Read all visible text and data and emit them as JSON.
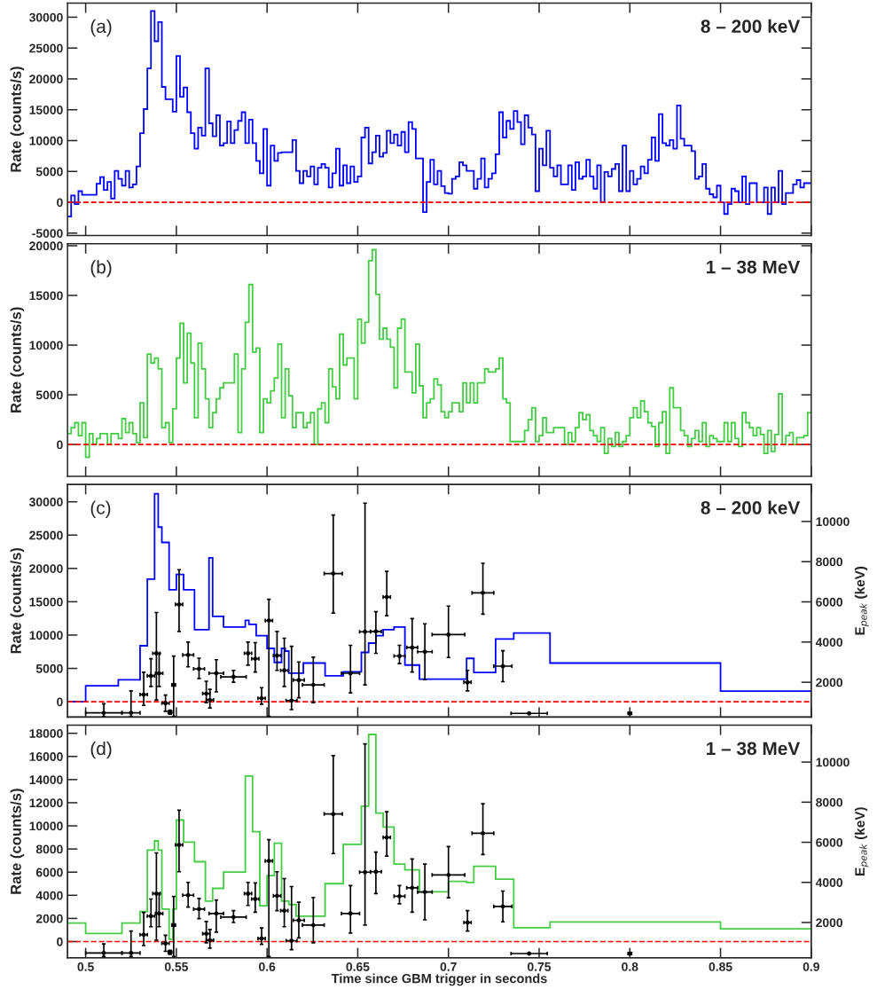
{
  "chart_data": [
    {
      "type": "histogram",
      "ylabel": "Rate (counts/s)",
      "annotations": [
        "(a)",
        "8 – 200 keV"
      ],
      "color": "#0000ff",
      "bins": [
        0.49,
        0.492,
        0.494,
        0.496,
        0.498,
        0.5,
        0.502,
        0.504,
        0.506,
        0.508,
        0.51,
        0.512,
        0.514,
        0.516,
        0.518,
        0.52,
        0.522,
        0.524,
        0.526,
        0.528,
        0.53,
        0.532,
        0.534,
        0.536,
        0.538,
        0.54,
        0.542,
        0.544,
        0.546,
        0.548,
        0.55,
        0.552,
        0.554,
        0.556,
        0.558,
        0.56,
        0.562,
        0.564,
        0.566,
        0.568,
        0.57,
        0.572,
        0.574,
        0.576,
        0.578,
        0.58,
        0.582,
        0.584,
        0.586,
        0.588,
        0.59,
        0.592,
        0.594,
        0.596,
        0.598,
        0.6,
        0.602,
        0.604,
        0.606,
        0.608,
        0.61,
        0.612,
        0.614,
        0.616,
        0.618,
        0.62,
        0.622,
        0.624,
        0.626,
        0.628,
        0.63,
        0.632,
        0.634,
        0.636,
        0.638,
        0.64,
        0.642,
        0.644,
        0.646,
        0.648,
        0.65,
        0.652,
        0.654,
        0.656,
        0.658,
        0.66,
        0.662,
        0.664,
        0.666,
        0.668,
        0.67,
        0.672,
        0.674,
        0.676,
        0.678,
        0.68,
        0.682,
        0.684,
        0.686,
        0.688,
        0.69,
        0.692,
        0.694,
        0.696,
        0.698,
        0.7,
        0.702,
        0.704,
        0.706,
        0.708,
        0.71,
        0.712,
        0.714,
        0.716,
        0.718,
        0.72,
        0.722,
        0.724,
        0.726,
        0.728,
        0.73,
        0.732,
        0.734,
        0.736,
        0.738,
        0.74,
        0.742,
        0.744,
        0.746,
        0.748,
        0.75,
        0.752,
        0.754,
        0.756,
        0.758,
        0.76,
        0.762,
        0.764,
        0.766,
        0.768,
        0.77,
        0.772,
        0.774,
        0.776,
        0.778,
        0.78,
        0.782,
        0.784,
        0.786,
        0.788,
        0.79,
        0.792,
        0.794,
        0.796,
        0.798,
        0.8,
        0.802,
        0.804,
        0.806,
        0.808,
        0.81,
        0.812,
        0.814,
        0.816,
        0.818,
        0.82,
        0.822,
        0.824,
        0.826,
        0.828,
        0.83,
        0.832,
        0.834,
        0.836,
        0.838,
        0.84,
        0.842,
        0.844,
        0.846,
        0.848,
        0.85,
        0.852,
        0.854,
        0.856,
        0.858,
        0.86,
        0.862,
        0.864,
        0.866,
        0.868,
        0.87,
        0.872,
        0.874,
        0.876,
        0.878,
        0.88,
        0.882,
        0.884,
        0.886,
        0.888,
        0.89,
        0.892,
        0.894,
        0.896,
        0.898,
        0.9
      ],
      "values": [
        -2300,
        1100,
        -300,
        1800,
        1200,
        1200,
        1200,
        1200,
        3000,
        4100,
        2000,
        3300,
        600,
        5100,
        3800,
        2700,
        5100,
        2400,
        2900,
        5800,
        11200,
        15100,
        21700,
        31000,
        26100,
        29200,
        18700,
        16700,
        16700,
        14700,
        23700,
        17100,
        18600,
        14600,
        11200,
        8700,
        12100,
        10800,
        21700,
        12800,
        10700,
        14100,
        9200,
        9600,
        13100,
        9600,
        11700,
        13200,
        14600,
        9600,
        13400,
        9600,
        6700,
        4700,
        11900,
        2700,
        9200,
        6700,
        8000,
        8100,
        8100,
        8100,
        10100,
        5100,
        3100,
        5100,
        4200,
        5800,
        2900,
        5600,
        6200,
        5600,
        2400,
        4700,
        8700,
        2700,
        6000,
        3100,
        5800,
        3300,
        4200,
        10500,
        12100,
        6300,
        8100,
        10800,
        7400,
        8000,
        11600,
        9600,
        11000,
        9200,
        11400,
        8100,
        13000,
        11900,
        7100,
        7100,
        -1600,
        3300,
        6900,
        2900,
        5100,
        2600,
        1500,
        1400,
        3800,
        4200,
        6500,
        6000,
        5100,
        5100,
        2200,
        3800,
        7100,
        2400,
        3800,
        4700,
        7800,
        14600,
        10500,
        13200,
        11900,
        14800,
        13000,
        9400,
        14100,
        12100,
        11000,
        1800,
        8700,
        6000,
        11600,
        5600,
        4200,
        6000,
        2900,
        2900,
        6000,
        2000,
        6500,
        3800,
        4200,
        6900,
        4200,
        2200,
        6000,
        0,
        4900,
        4200,
        5400,
        6200,
        1800,
        9200,
        1800,
        5100,
        2900,
        3800,
        5800,
        4700,
        6900,
        10500,
        6700,
        14300,
        9600,
        9200,
        10100,
        8700,
        15700,
        10300,
        9200,
        9200,
        8300,
        3800,
        4200,
        6200,
        2200,
        1300,
        800,
        2700,
        0,
        -1900,
        -300,
        2200,
        1800,
        0,
        4200,
        -300,
        3100,
        3100,
        0,
        0,
        2400,
        -1900,
        2400,
        0,
        5100,
        -300,
        1500,
        1500,
        2900,
        3600,
        2400,
        3100,
        3100
      ],
      "xlim": [
        0.49,
        0.9
      ],
      "xticks": [
        0.5,
        0.55,
        0.6,
        0.65,
        0.7,
        0.75,
        0.8,
        0.85,
        0.9
      ],
      "ylim": [
        -5400,
        32300
      ],
      "yticks": [
        -5000,
        0,
        5000,
        10000,
        15000,
        20000,
        25000,
        30000
      ],
      "tick_labels": "y",
      "ref_lines": [
        {
          "axis": "y",
          "value": 0,
          "color": "#ff0000",
          "line_style": "dashed"
        }
      ]
    },
    {
      "type": "histogram",
      "ylabel": "Rate (counts/s)",
      "annotations": [
        "(b)",
        "1 – 38 MeV"
      ],
      "color": "#44cc44",
      "bins": [
        0.49,
        0.492,
        0.494,
        0.496,
        0.498,
        0.5,
        0.502,
        0.504,
        0.506,
        0.508,
        0.51,
        0.512,
        0.514,
        0.516,
        0.518,
        0.52,
        0.522,
        0.524,
        0.526,
        0.528,
        0.53,
        0.532,
        0.534,
        0.536,
        0.538,
        0.54,
        0.542,
        0.544,
        0.546,
        0.548,
        0.55,
        0.552,
        0.554,
        0.556,
        0.558,
        0.56,
        0.562,
        0.564,
        0.566,
        0.568,
        0.57,
        0.572,
        0.574,
        0.576,
        0.578,
        0.58,
        0.582,
        0.584,
        0.586,
        0.588,
        0.59,
        0.592,
        0.594,
        0.596,
        0.598,
        0.6,
        0.602,
        0.604,
        0.606,
        0.608,
        0.61,
        0.612,
        0.614,
        0.616,
        0.618,
        0.62,
        0.622,
        0.624,
        0.626,
        0.628,
        0.63,
        0.632,
        0.634,
        0.636,
        0.638,
        0.64,
        0.642,
        0.644,
        0.646,
        0.648,
        0.65,
        0.652,
        0.654,
        0.656,
        0.658,
        0.66,
        0.662,
        0.664,
        0.666,
        0.668,
        0.67,
        0.672,
        0.674,
        0.676,
        0.678,
        0.68,
        0.682,
        0.684,
        0.686,
        0.688,
        0.69,
        0.692,
        0.694,
        0.696,
        0.698,
        0.7,
        0.702,
        0.704,
        0.706,
        0.708,
        0.71,
        0.712,
        0.714,
        0.716,
        0.718,
        0.72,
        0.722,
        0.724,
        0.726,
        0.728,
        0.73,
        0.732,
        0.734,
        0.736,
        0.738,
        0.74,
        0.742,
        0.744,
        0.746,
        0.748,
        0.75,
        0.752,
        0.754,
        0.756,
        0.758,
        0.76,
        0.762,
        0.764,
        0.766,
        0.768,
        0.77,
        0.772,
        0.774,
        0.776,
        0.778,
        0.78,
        0.782,
        0.784,
        0.786,
        0.788,
        0.79,
        0.792,
        0.794,
        0.796,
        0.798,
        0.8,
        0.802,
        0.804,
        0.806,
        0.808,
        0.81,
        0.812,
        0.814,
        0.816,
        0.818,
        0.82,
        0.822,
        0.824,
        0.826,
        0.828,
        0.83,
        0.832,
        0.834,
        0.836,
        0.838,
        0.84,
        0.842,
        0.844,
        0.846,
        0.848,
        0.85,
        0.852,
        0.854,
        0.856,
        0.858,
        0.86,
        0.862,
        0.864,
        0.866,
        0.868,
        0.87,
        0.872,
        0.874,
        0.876,
        0.878,
        0.88,
        0.882,
        0.884,
        0.886,
        0.888,
        0.89,
        0.892,
        0.894,
        0.896,
        0.898,
        0.9
      ],
      "values": [
        1100,
        1700,
        2200,
        900,
        2200,
        -1300,
        1100,
        0,
        600,
        1100,
        1100,
        0,
        1100,
        1100,
        600,
        2600,
        1200,
        2200,
        1100,
        200,
        4200,
        700,
        9100,
        8200,
        8700,
        7600,
        1700,
        2200,
        200,
        3600,
        8700,
        12200,
        6200,
        11200,
        8200,
        2700,
        10200,
        7600,
        4600,
        1700,
        3200,
        4600,
        5700,
        6200,
        6200,
        6200,
        9100,
        1200,
        7600,
        12300,
        16100,
        9300,
        9700,
        1200,
        4600,
        4200,
        5400,
        6700,
        10100,
        2700,
        7600,
        4900,
        1700,
        3200,
        3200,
        1700,
        2200,
        3200,
        0,
        3600,
        4200,
        2200,
        7600,
        5800,
        4600,
        11100,
        8000,
        8700,
        8700,
        4600,
        12600,
        10200,
        12300,
        18500,
        19600,
        15100,
        10600,
        11700,
        10600,
        9800,
        5700,
        11700,
        12600,
        7300,
        7300,
        5200,
        10100,
        5900,
        2700,
        4200,
        4600,
        6600,
        6000,
        3300,
        2700,
        3300,
        4200,
        4200,
        3300,
        6200,
        4200,
        6200,
        4200,
        6200,
        6200,
        7600,
        7300,
        7300,
        7600,
        8700,
        4600,
        4200,
        300,
        300,
        300,
        300,
        1400,
        2500,
        3700,
        300,
        900,
        2700,
        1200,
        1200,
        1700,
        1700,
        1700,
        0,
        1200,
        300,
        1700,
        3200,
        2500,
        3000,
        1400,
        900,
        300,
        1700,
        -900,
        600,
        -200,
        1200,
        -200,
        300,
        900,
        2700,
        3700,
        2700,
        4400,
        3300,
        2200,
        1800,
        -200,
        2200,
        3300,
        -900,
        5700,
        3700,
        3700,
        1400,
        900,
        -200,
        600,
        1400,
        300,
        2200,
        -200,
        900,
        600,
        300,
        300,
        2200,
        300,
        2200,
        600,
        -200,
        3200,
        2200,
        1700,
        900,
        1700,
        1000,
        -900,
        1400,
        -700,
        1000,
        5100,
        0,
        900,
        1200,
        0,
        700,
        700,
        900,
        3200
      ],
      "xlim": [
        0.49,
        0.9
      ],
      "xticks": [
        0.5,
        0.55,
        0.6,
        0.65,
        0.7,
        0.75,
        0.8,
        0.85,
        0.9
      ],
      "ylim": [
        -3200,
        20200
      ],
      "yticks": [
        0,
        5000,
        10000,
        15000,
        20000
      ],
      "tick_labels": "y",
      "ref_lines": [
        {
          "axis": "y",
          "value": 0,
          "color": "#ff0000",
          "line_style": "dashed"
        }
      ]
    },
    {
      "type": "histogram",
      "ylabel": "Rate (counts/s)",
      "y2label": "E$_{peak}$ (keV)",
      "annotations": [
        "(c)",
        "8 – 200 keV"
      ],
      "series": [
        {
          "type": "histogram",
          "color": "#0000ff",
          "bins": [
            0.49,
            0.5,
            0.518,
            0.53,
            0.534,
            0.538,
            0.54,
            0.542,
            0.546,
            0.55,
            0.554,
            0.56,
            0.568,
            0.57,
            0.576,
            0.588,
            0.59,
            0.594,
            0.6,
            0.604,
            0.608,
            0.61,
            0.612,
            0.62,
            0.632,
            0.642,
            0.652,
            0.656,
            0.66,
            0.664,
            0.67,
            0.676,
            0.684,
            0.71,
            0.714,
            0.726,
            0.736,
            0.756,
            0.85,
            0.9
          ],
          "values": [
            0,
            2400,
            3300,
            8400,
            18400,
            31200,
            26200,
            23900,
            16800,
            19100,
            16800,
            10800,
            21600,
            12800,
            11200,
            12200,
            11600,
            9900,
            8000,
            5900,
            8000,
            7600,
            4300,
            5800,
            3900,
            4500,
            7400,
            8800,
            9900,
            10800,
            11200,
            5500,
            3400,
            6500,
            4400,
            9400,
            10300,
            5800,
            1600
          ]
        },
        {
          "type": "scatter",
          "axis": "y2",
          "color": "#000000",
          "marker": "circle",
          "x": [
            0.51,
            0.525,
            0.532,
            0.536,
            0.539,
            0.5405,
            0.544,
            0.5465,
            0.5485,
            0.5515,
            0.5565,
            0.5625,
            0.5665,
            0.5685,
            0.572,
            0.5815,
            0.5895,
            0.5935,
            0.597,
            0.601,
            0.6055,
            0.6095,
            0.6135,
            0.6175,
            0.6255,
            0.6365,
            0.646,
            0.654,
            0.66,
            0.666,
            0.673,
            0.68,
            0.687,
            0.7,
            0.7105,
            0.719,
            0.73,
            0.7445,
            0.8
          ],
          "values": [
            480,
            480,
            1390,
            2320,
            3440,
            2450,
            960,
            510,
            1870,
            5870,
            3360,
            2670,
            1440,
            1120,
            2450,
            2270,
            3440,
            3170,
            1200,
            5070,
            3330,
            2590,
            1090,
            2110,
            1870,
            7410,
            2450,
            4510,
            4530,
            6240,
            3310,
            3730,
            3520,
            4370,
            2000,
            6450,
            2800,
            450,
            450
          ],
          "xerrors": [
            0.01,
            0.005,
            0.002,
            0.002,
            0.002,
            0.002,
            0.002,
            0.001,
            0.001,
            0.002,
            0.003,
            0.003,
            0.002,
            0.002,
            0.004,
            0.007,
            0.002,
            0.002,
            0.002,
            0.002,
            0.002,
            0.002,
            0.003,
            0.003,
            0.006,
            0.005,
            0.005,
            0.003,
            0.003,
            0.002,
            0.003,
            0.003,
            0.004,
            0.009,
            0.002,
            0.006,
            0.005,
            0.01,
            0.001
          ],
          "errors": [
            [
              300,
              930
            ],
            [
              300,
              1570
            ],
            [
              850,
              2500
            ],
            [
              1790,
              3170
            ],
            [
              1120,
              5470
            ],
            [
              1790,
              3440
            ],
            [
              560,
              1360
            ],
            [
              410,
              610
            ],
            [
              300,
              3300
            ],
            [
              4530,
              7600
            ],
            [
              2770,
              4000
            ],
            [
              2190,
              3200
            ],
            [
              990,
              2050
            ],
            [
              720,
              1650
            ],
            [
              1520,
              3120
            ],
            [
              2000,
              2590
            ],
            [
              2850,
              4000
            ],
            [
              2510,
              3970
            ],
            [
              910,
              1730
            ],
            [
              300,
              6130
            ],
            [
              2590,
              4530
            ],
            [
              1790,
              4190
            ],
            [
              640,
              3790
            ],
            [
              1230,
              3010
            ],
            [
              990,
              3250
            ],
            [
              5440,
              10320
            ],
            [
              1470,
              3840
            ],
            [
              1870,
              10910
            ],
            [
              3440,
              5510
            ],
            [
              5310,
              7520
            ],
            [
              2930,
              3840
            ],
            [
              2510,
              5170
            ],
            [
              2130,
              4910
            ],
            [
              3230,
              5790
            ],
            [
              1570,
              2590
            ],
            [
              5390,
              7920
            ],
            [
              2030,
              3570
            ],
            null,
            null
          ]
        }
      ],
      "xlim": [
        0.49,
        0.9
      ],
      "xticks": [
        0.5,
        0.55,
        0.6,
        0.65,
        0.7,
        0.75,
        0.8,
        0.85,
        0.9
      ],
      "ylim": [
        -2300,
        32600
      ],
      "yticks": [
        0,
        5000,
        10000,
        15000,
        20000,
        25000,
        30000
      ],
      "y2lim": [
        270,
        11840
      ],
      "y2ticks": [
        2000,
        4000,
        6000,
        8000,
        10000
      ],
      "tick_labels": "y",
      "ref_lines": [
        {
          "axis": "y",
          "value": 0,
          "color": "#ff0000",
          "line_style": "dashed"
        }
      ]
    },
    {
      "type": "histogram",
      "ylabel": "Rate (counts/s)",
      "y2label": "E$_{peak}$ (keV)",
      "xlabel": "Time since GBM trigger in seconds",
      "annotations": [
        "(d)",
        "1 – 38 MeV"
      ],
      "series": [
        {
          "type": "histogram",
          "color": "#44cc44",
          "bins": [
            0.49,
            0.5,
            0.52,
            0.53,
            0.534,
            0.538,
            0.54,
            0.542,
            0.546,
            0.548,
            0.55,
            0.554,
            0.56,
            0.566,
            0.57,
            0.576,
            0.588,
            0.592,
            0.596,
            0.6,
            0.604,
            0.608,
            0.612,
            0.616,
            0.632,
            0.642,
            0.652,
            0.656,
            0.66,
            0.664,
            0.67,
            0.676,
            0.684,
            0.7,
            0.71,
            0.714,
            0.726,
            0.736,
            0.756,
            0.85,
            0.9
          ],
          "values": [
            1600,
            700,
            1600,
            2600,
            7900,
            8700,
            7900,
            2800,
            200,
            2800,
            10500,
            8600,
            6900,
            3500,
            4600,
            6000,
            14300,
            9500,
            3100,
            5700,
            8500,
            3500,
            3200,
            2200,
            5000,
            8400,
            11700,
            17900,
            11100,
            9900,
            6700,
            6200,
            4300,
            5200,
            5100,
            6500,
            5400,
            1200,
            1700,
            1100
          ]
        },
        {
          "type": "scatter",
          "axis": "y2",
          "color": "#000000",
          "marker": "circle",
          "x": [
            0.51,
            0.525,
            0.532,
            0.536,
            0.539,
            0.5405,
            0.544,
            0.5465,
            0.5485,
            0.5515,
            0.5565,
            0.5625,
            0.5665,
            0.5685,
            0.572,
            0.5815,
            0.5895,
            0.5935,
            0.597,
            0.601,
            0.6055,
            0.6095,
            0.6135,
            0.6175,
            0.6255,
            0.6365,
            0.646,
            0.654,
            0.66,
            0.666,
            0.673,
            0.68,
            0.687,
            0.7,
            0.7105,
            0.719,
            0.73,
            0.7445,
            0.8
          ],
          "values": [
            480,
            480,
            1390,
            2320,
            3440,
            2450,
            960,
            510,
            1870,
            5870,
            3360,
            2670,
            1440,
            1120,
            2450,
            2270,
            3440,
            3170,
            1200,
            5070,
            3330,
            2590,
            1090,
            2110,
            1870,
            7410,
            2450,
            4510,
            4530,
            6240,
            3310,
            3730,
            3520,
            4370,
            2000,
            6450,
            2800,
            450,
            450
          ],
          "xerrors": [
            0.01,
            0.005,
            0.002,
            0.002,
            0.002,
            0.002,
            0.002,
            0.001,
            0.001,
            0.002,
            0.003,
            0.003,
            0.002,
            0.002,
            0.004,
            0.007,
            0.002,
            0.002,
            0.002,
            0.002,
            0.002,
            0.002,
            0.003,
            0.003,
            0.006,
            0.005,
            0.005,
            0.003,
            0.003,
            0.002,
            0.003,
            0.003,
            0.004,
            0.009,
            0.002,
            0.006,
            0.005,
            0.01,
            0.001
          ],
          "errors": [
            [
              300,
              930
            ],
            [
              300,
              1570
            ],
            [
              850,
              2500
            ],
            [
              1790,
              3170
            ],
            [
              1120,
              5470
            ],
            [
              1790,
              3440
            ],
            [
              560,
              1360
            ],
            [
              410,
              610
            ],
            [
              300,
              3300
            ],
            [
              4530,
              7600
            ],
            [
              2770,
              4000
            ],
            [
              2190,
              3200
            ],
            [
              990,
              2050
            ],
            [
              720,
              1650
            ],
            [
              1520,
              3120
            ],
            [
              2000,
              2590
            ],
            [
              2850,
              4000
            ],
            [
              2510,
              3970
            ],
            [
              910,
              1730
            ],
            [
              300,
              6130
            ],
            [
              2590,
              4530
            ],
            [
              1790,
              4190
            ],
            [
              640,
              3790
            ],
            [
              1230,
              3010
            ],
            [
              990,
              3250
            ],
            [
              5440,
              10320
            ],
            [
              1470,
              3840
            ],
            [
              1870,
              10910
            ],
            [
              3440,
              5510
            ],
            [
              5310,
              7520
            ],
            [
              2930,
              3840
            ],
            [
              2510,
              5170
            ],
            [
              2130,
              4910
            ],
            [
              3230,
              5790
            ],
            [
              1570,
              2590
            ],
            [
              5390,
              7920
            ],
            [
              2030,
              3570
            ],
            null,
            null
          ]
        }
      ],
      "xlim": [
        0.49,
        0.9
      ],
      "xticks": [
        0.5,
        0.55,
        0.6,
        0.65,
        0.7,
        0.75,
        0.8,
        0.85,
        0.9
      ],
      "ylim": [
        -1400,
        18700
      ],
      "yticks": [
        0,
        2000,
        4000,
        6000,
        8000,
        10000,
        12000,
        14000,
        16000,
        18000
      ],
      "y2lim": [
        240,
        11840
      ],
      "y2ticks": [
        2000,
        4000,
        6000,
        8000,
        10000
      ],
      "ref_lines": [
        {
          "axis": "y",
          "value": 0,
          "color": "#ff0000",
          "line_style": "dashed"
        }
      ]
    }
  ]
}
